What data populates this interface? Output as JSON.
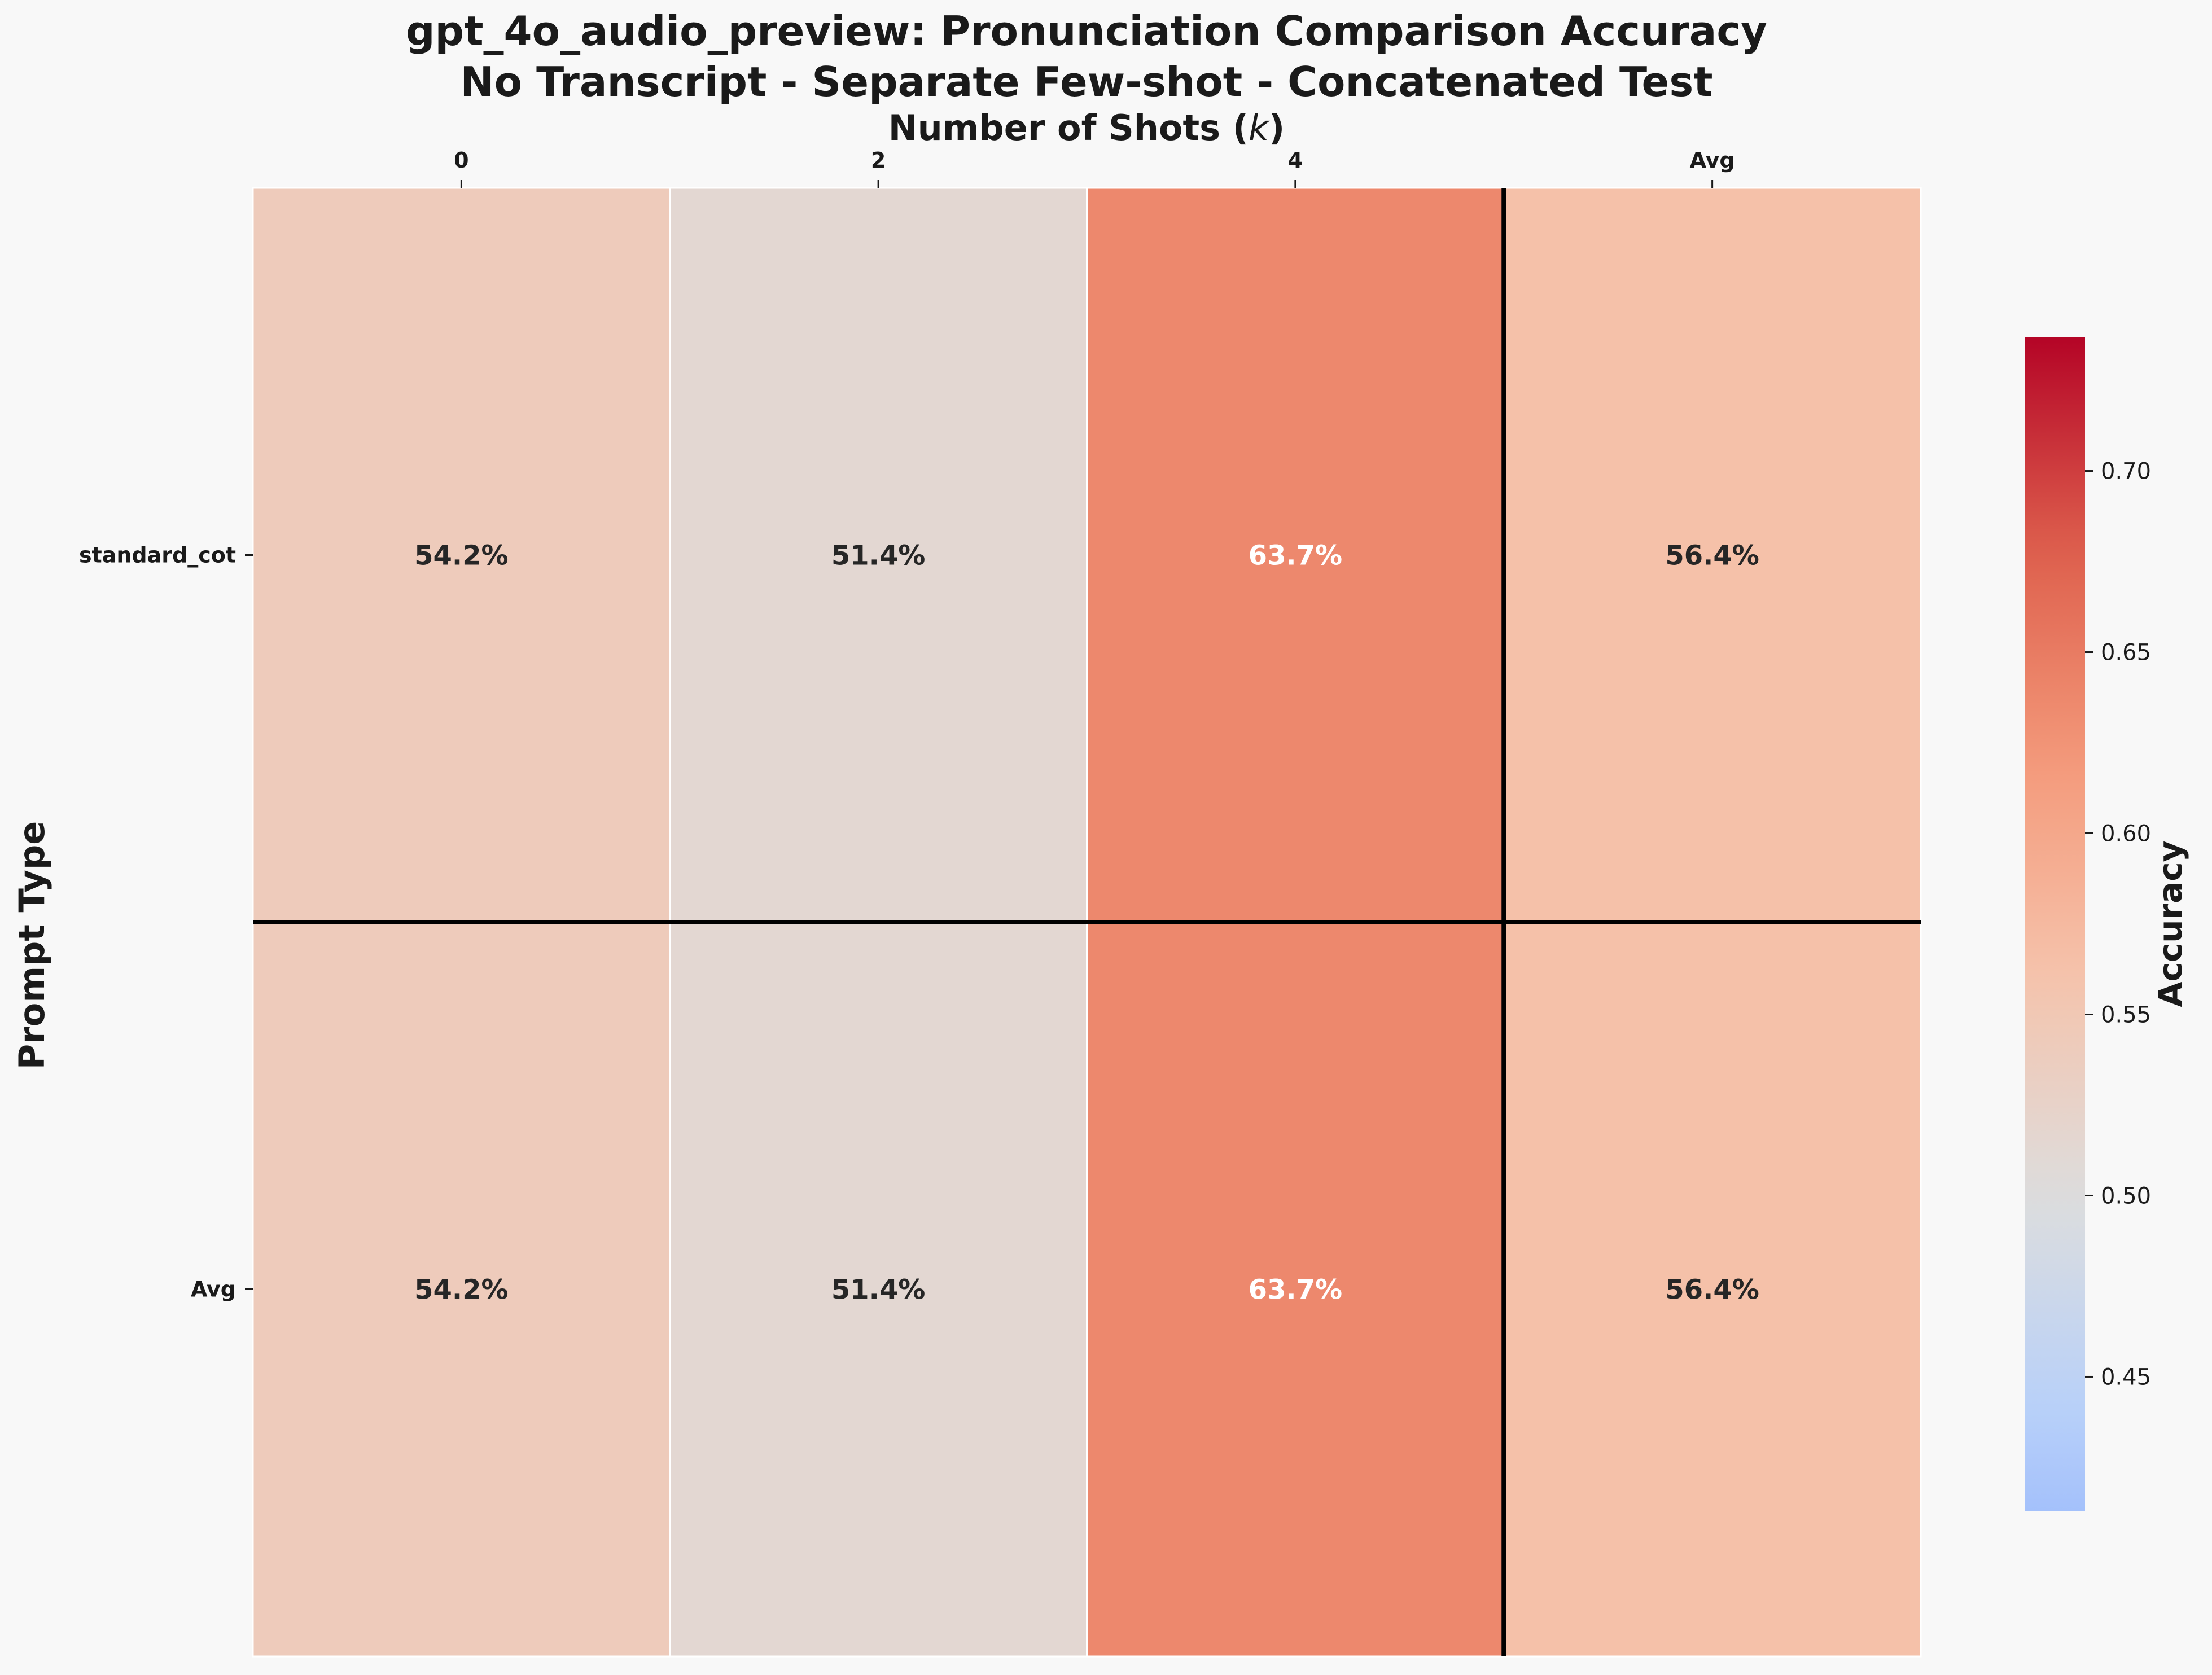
{
  "chart_data": {
    "type": "heatmap",
    "title": "gpt_4o_audio_preview: Pronunciation Comparison Accuracy",
    "subtitle": "No Transcript - Separate Few-shot - Concatenated Test",
    "xlabel": "Number of Shots ($k$)",
    "xlabel_display": "Number of Shots (k)",
    "ylabel": "Prompt Type",
    "x_categories": [
      "0",
      "2",
      "4",
      "Avg"
    ],
    "y_categories": [
      "standard_cot",
      "Avg"
    ],
    "values": [
      [
        0.542,
        0.514,
        0.637,
        0.564
      ],
      [
        0.542,
        0.514,
        0.637,
        0.564
      ]
    ],
    "cell_labels": [
      [
        "54.2%",
        "51.4%",
        "63.7%",
        "56.4%"
      ],
      [
        "54.2%",
        "51.4%",
        "63.7%",
        "56.4%"
      ]
    ],
    "colorbar": {
      "label": "Accuracy",
      "colormap": "coolwarm",
      "range": [
        0.413,
        0.737
      ],
      "ticks": [
        "0.45",
        "0.50",
        "0.55",
        "0.60",
        "0.65",
        "0.70"
      ],
      "tick_values": [
        0.45,
        0.5,
        0.55,
        0.6,
        0.65,
        0.7
      ]
    },
    "separator_lines": {
      "after_column": "4",
      "after_row": "standard_cot",
      "color": "#000000"
    },
    "x_axis_position": "top",
    "legend": "colorbar-right"
  }
}
